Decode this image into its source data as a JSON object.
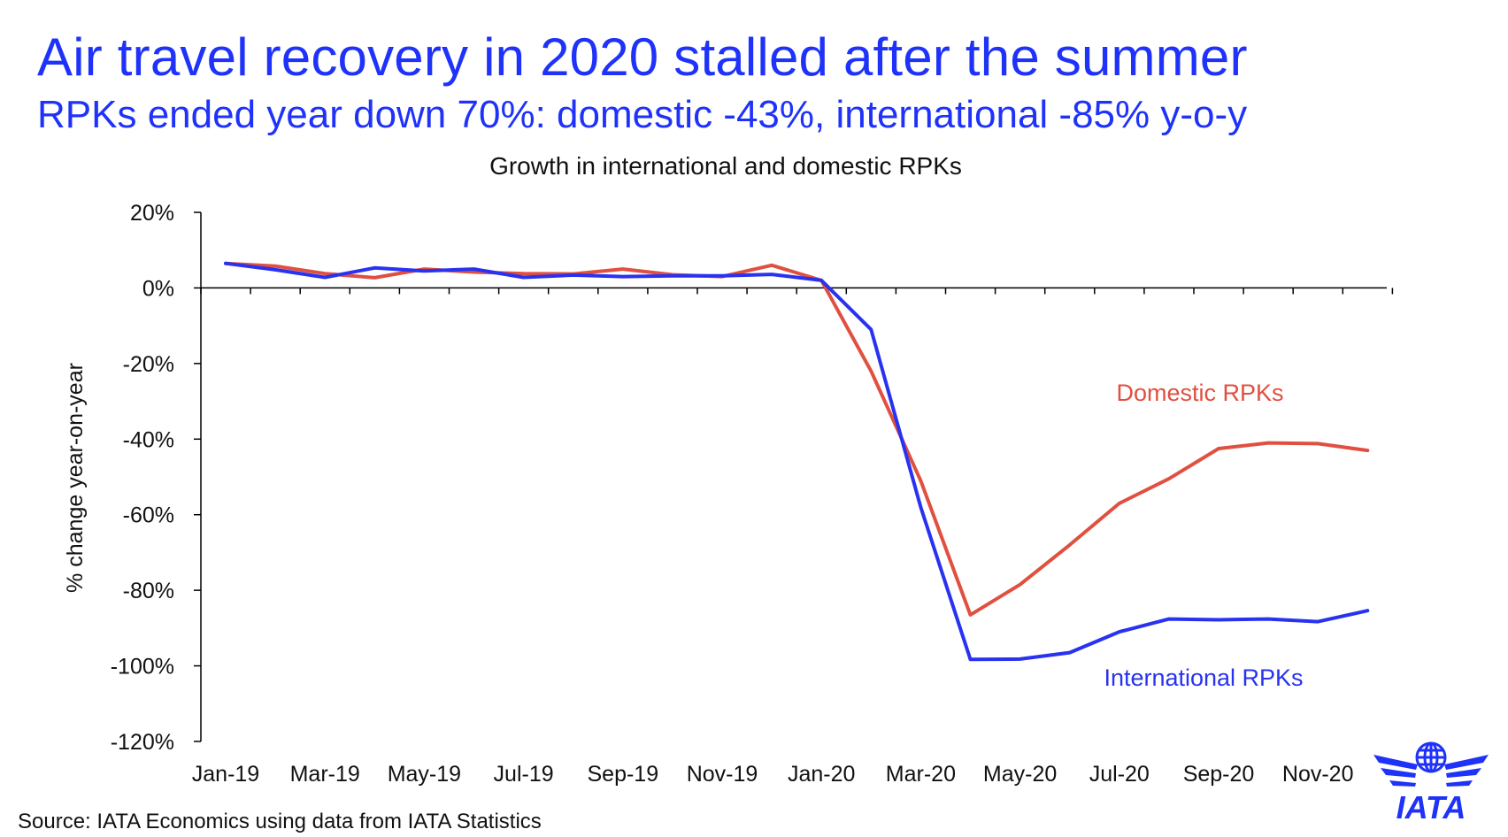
{
  "slide": {
    "title": "Air travel recovery in 2020 stalled after the summer",
    "subtitle": "RPKs ended year down 70%: domestic -43%, international -85% y-o-y",
    "source": "Source: IATA Economics using data from IATA Statistics"
  },
  "logo": {
    "text": "IATA",
    "icon": "globe-wings-icon",
    "color": "#1e32fa"
  },
  "chart_data": {
    "type": "line",
    "title": "Growth in international and domestic RPKs",
    "ylabel": "% change year-on-year",
    "xlabel": "",
    "ylim": [
      -120,
      20
    ],
    "yticks": [
      20,
      0,
      -20,
      -40,
      -60,
      -80,
      -100,
      -120
    ],
    "ytick_labels": [
      "20%",
      "0%",
      "-20%",
      "-40%",
      "-60%",
      "-80%",
      "-100%",
      "-120%"
    ],
    "x": [
      "Jan-19",
      "Feb-19",
      "Mar-19",
      "Apr-19",
      "May-19",
      "Jun-19",
      "Jul-19",
      "Aug-19",
      "Sep-19",
      "Oct-19",
      "Nov-19",
      "Dec-19",
      "Jan-20",
      "Feb-20",
      "Mar-20",
      "Apr-20",
      "May-20",
      "Jun-20",
      "Jul-20",
      "Aug-20",
      "Sep-20",
      "Oct-20",
      "Nov-20",
      "Dec-20"
    ],
    "xtick_labels": [
      "Jan-19",
      "Mar-19",
      "May-19",
      "Jul-19",
      "Sep-19",
      "Nov-19",
      "Jan-20",
      "Mar-20",
      "May-20",
      "Jul-20",
      "Sep-20",
      "Nov-20"
    ],
    "grid": false,
    "series": [
      {
        "name": "Domestic RPKs",
        "color": "#e05040",
        "values": [
          6.5,
          5.8,
          3.8,
          2.7,
          5.0,
          4.2,
          3.8,
          3.7,
          5.0,
          3.5,
          3.0,
          6.0,
          2.0,
          -22.0,
          -51.0,
          -86.5,
          -78.5,
          -68.0,
          -57.0,
          -50.5,
          -42.5,
          -41.0,
          -41.2,
          -43.0
        ]
      },
      {
        "name": "International RPKs",
        "color": "#2832f0",
        "values": [
          6.5,
          4.8,
          2.8,
          5.3,
          4.5,
          5.0,
          2.8,
          3.4,
          3.0,
          3.2,
          3.2,
          3.6,
          2.0,
          -11.0,
          -58.0,
          -98.3,
          -98.2,
          -96.5,
          -91.0,
          -87.6,
          -87.8,
          -87.6,
          -88.3,
          -85.4
        ]
      }
    ]
  }
}
